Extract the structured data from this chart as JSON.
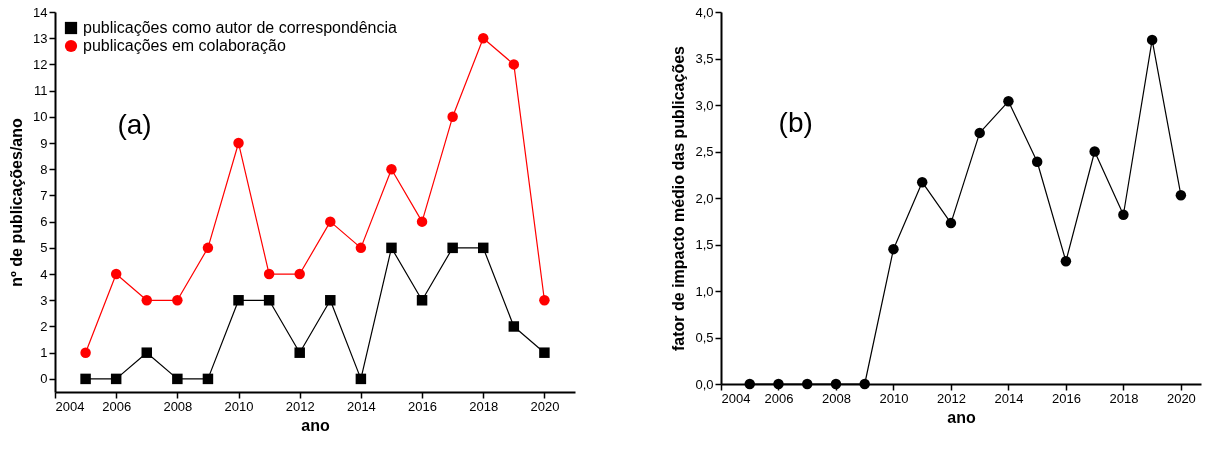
{
  "chart_data": [
    {
      "type": "line",
      "xlabel": "ano",
      "ylabel": "nº de publicações/ano",
      "annotations": [
        "(a)"
      ],
      "legend": "top left",
      "x": [
        2005,
        2006,
        2007,
        2008,
        2009,
        2010,
        2011,
        2012,
        2013,
        2014,
        2015,
        2016,
        2017,
        2018,
        2019,
        2020
      ],
      "series": [
        {
          "name": "publicações como autor de correspondência",
          "color": "#000000",
          "marker": "square",
          "values": [
            0,
            0,
            1,
            0,
            0,
            3,
            3,
            1,
            3,
            0,
            5,
            3,
            5,
            5,
            2,
            1
          ]
        },
        {
          "name": "publicações em colaboração",
          "color": "#ff0000",
          "marker": "circle",
          "values": [
            1,
            4,
            3,
            3,
            5,
            9,
            4,
            4,
            6,
            5,
            8,
            6,
            10,
            13,
            12,
            3
          ]
        }
      ],
      "xlim": [
        2004,
        2021
      ],
      "xticks": [
        2004,
        2006,
        2008,
        2010,
        2012,
        2014,
        2016,
        2018,
        2020
      ],
      "ylim": [
        -0.5,
        14
      ],
      "yticks": [
        0,
        1,
        2,
        3,
        4,
        5,
        6,
        7,
        8,
        9,
        10,
        11,
        12,
        13,
        14
      ],
      "grid": false
    },
    {
      "type": "line",
      "xlabel": "ano",
      "ylabel": "fator de impacto médio das publicações",
      "annotations": [
        "(b)"
      ],
      "legend": false,
      "x": [
        2005,
        2006,
        2007,
        2008,
        2009,
        2010,
        2011,
        2012,
        2013,
        2014,
        2015,
        2016,
        2017,
        2018,
        2019,
        2020
      ],
      "series": [
        {
          "color": "#000000",
          "marker": "circle",
          "values": [
            0,
            0,
            0,
            0,
            0,
            1.45,
            2.17,
            1.73,
            2.7,
            3.04,
            2.39,
            1.32,
            2.5,
            1.82,
            3.7,
            2.03
          ]
        }
      ],
      "xlim": [
        2004,
        2020.7
      ],
      "xticks": [
        2004,
        2006,
        2008,
        2010,
        2012,
        2014,
        2016,
        2018,
        2020
      ],
      "ylim": [
        0,
        4
      ],
      "yticks": [
        {
          "value": 0,
          "label": "0,0"
        },
        {
          "value": 0.5,
          "label": "0,5"
        },
        {
          "value": 1,
          "label": "1,0"
        },
        {
          "value": 1.5,
          "label": "1,5"
        },
        {
          "value": 2,
          "label": "2,0"
        },
        {
          "value": 2.5,
          "label": "2,5"
        },
        {
          "value": 3,
          "label": "3,0"
        },
        {
          "value": 3.5,
          "label": "3,5"
        },
        {
          "value": 4,
          "label": "4,0"
        }
      ],
      "grid": false
    }
  ]
}
